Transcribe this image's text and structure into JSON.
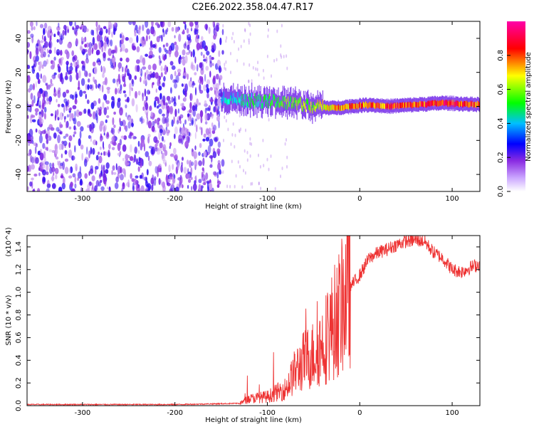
{
  "title": "C2E6.2022.358.04.47.R17",
  "chart_data": [
    {
      "type": "heatmap",
      "xlabel": "Height of straight line (km)",
      "ylabel": "Frequency (Hz)",
      "xlim": [
        -360,
        130
      ],
      "ylim": [
        -50,
        50
      ],
      "xticks": [
        -300,
        -200,
        -100,
        0,
        100
      ],
      "yticks": [
        -40,
        -20,
        0,
        20,
        40
      ],
      "colorbar": {
        "label": "Normalized spectral amplitude",
        "range": [
          0.0,
          1.0
        ],
        "ticks": [
          0.0,
          0.2,
          0.4,
          0.6,
          0.8
        ],
        "colormap": [
          "#ffffff",
          "#8a2be2",
          "#0000ff",
          "#00ffff",
          "#00ff00",
          "#ffff00",
          "#ff0000",
          "#ff00aa"
        ]
      },
      "ridge": {
        "description_x": [
          -150,
          -130,
          -110,
          -90,
          -70,
          -50,
          -30,
          -10,
          10,
          30,
          60,
          90,
          130
        ],
        "freq": [
          5,
          4,
          3,
          3,
          2,
          0,
          -1,
          0,
          1,
          0,
          1,
          2,
          1
        ],
        "amplitude": [
          0.4,
          0.45,
          0.5,
          0.55,
          0.6,
          0.65,
          0.75,
          0.8,
          0.82,
          0.85,
          0.85,
          0.9,
          0.85
        ]
      }
    },
    {
      "type": "line",
      "xlabel": "Height of straight line (km)",
      "ylabel": "SNR (10 * v/v)",
      "y_multiplier": "(x10^4)",
      "xlim": [
        -360,
        130
      ],
      "ylim": [
        0.0,
        1.5
      ],
      "xticks": [
        -300,
        -200,
        -100,
        0,
        100
      ],
      "yticks": [
        0.0,
        0.2,
        0.4,
        0.6,
        0.8,
        1.0,
        1.2,
        1.4
      ],
      "line_color": "#ee3333",
      "series": [
        {
          "x": [
            -360,
            -300,
            -200,
            -130,
            -120,
            -100,
            -80,
            -70,
            -60,
            -50,
            -40,
            -30,
            -20,
            -15,
            -10,
            0,
            10,
            20,
            30,
            40,
            50,
            60,
            70,
            80,
            90,
            100,
            110,
            120,
            130
          ],
          "y": [
            0.01,
            0.01,
            0.01,
            0.02,
            0.06,
            0.08,
            0.15,
            0.3,
            0.4,
            0.45,
            0.55,
            0.7,
            0.85,
            1.0,
            1.05,
            1.15,
            1.3,
            1.35,
            1.38,
            1.42,
            1.45,
            1.46,
            1.45,
            1.35,
            1.3,
            1.2,
            1.18,
            1.22,
            1.25
          ]
        }
      ]
    }
  ]
}
